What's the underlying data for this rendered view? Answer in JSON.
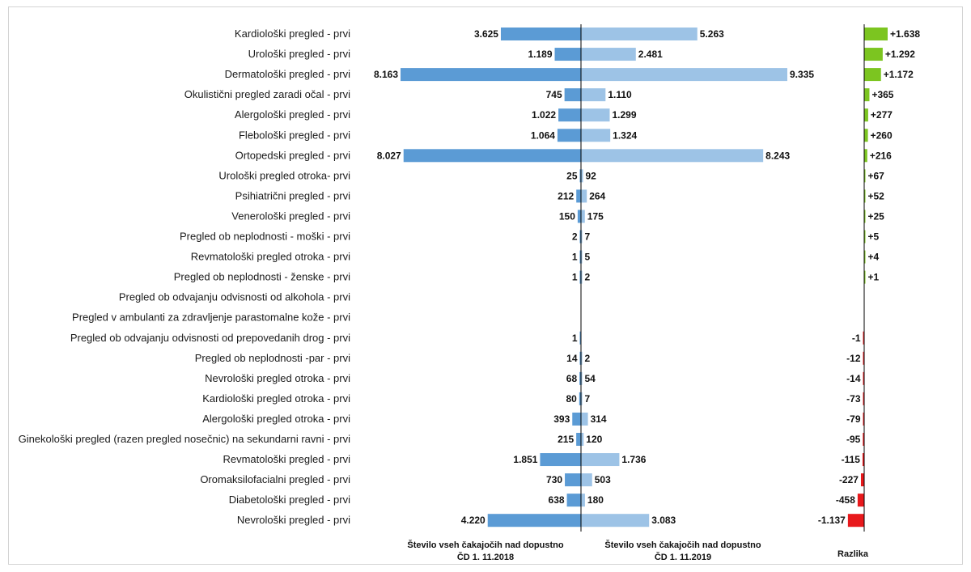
{
  "chart_data": {
    "type": "bar",
    "categories": [
      "Kardiološki pregled - prvi",
      "Urološki pregled - prvi",
      "Dermatološki pregled - prvi",
      "Okulistični pregled zaradi očal - prvi",
      "Alergološki pregled - prvi",
      "Flebološki pregled - prvi",
      "Ortopedski pregled - prvi",
      "Urološki pregled otroka- prvi",
      "Psihiatrični pregled - prvi",
      "Venerološki pregled - prvi",
      "Pregled ob neplodnosti - moški - prvi",
      "Revmatološki pregled otroka - prvi",
      "Pregled ob neplodnosti - ženske - prvi",
      "Pregled ob odvajanju odvisnosti od alkohola - prvi",
      "Pregled v ambulanti za zdravljenje parastomalne kože - prvi",
      "Pregled ob odvajanju odvisnosti od prepovedanih drog - prvi",
      "Pregled ob neplodnosti -par - prvi",
      "Nevrološki pregled otroka - prvi",
      "Kardiološki pregled otroka - prvi",
      "Alergološki pregled otroka - prvi",
      "Ginekološki pregled (razen pregled nosečnic) na sekundarni ravni - prvi",
      "Revmatološki pregled - prvi",
      "Oromaksilofacialni pregled - prvi",
      "Diabetološki pregled - prvi",
      "Nevrološki pregled - prvi"
    ],
    "series": [
      {
        "name": "Število vseh čakajočih nad dopustno ČD 1. 11.2018",
        "values": [
          3625,
          1189,
          8163,
          745,
          1022,
          1064,
          8027,
          25,
          212,
          150,
          2,
          1,
          1,
          null,
          null,
          1,
          14,
          68,
          80,
          393,
          215,
          1851,
          730,
          638,
          4220
        ],
        "labels": [
          "3.625",
          "1.189",
          "8.163",
          "745",
          "1.022",
          "1.064",
          "8.027",
          "25",
          "212",
          "150",
          "2",
          "1",
          "1",
          "",
          "",
          "1",
          "14",
          "68",
          "80",
          "393",
          "215",
          "1.851",
          "730",
          "638",
          "4.220"
        ],
        "color": "#5b9bd5"
      },
      {
        "name": "Število vseh čakajočih nad dopustno ČD 1. 11.2019",
        "values": [
          5263,
          2481,
          9335,
          1110,
          1299,
          1324,
          8243,
          92,
          264,
          175,
          7,
          5,
          2,
          null,
          null,
          null,
          2,
          54,
          7,
          314,
          120,
          1736,
          503,
          180,
          3083
        ],
        "labels": [
          "5.263",
          "2.481",
          "9.335",
          "1.110",
          "1.299",
          "1.324",
          "8.243",
          "92",
          "264",
          "175",
          "7",
          "5",
          "2",
          "",
          "",
          "",
          "2",
          "54",
          "7",
          "314",
          "120",
          "1.736",
          "503",
          "180",
          "3.083"
        ],
        "color": "#9dc3e6"
      },
      {
        "name": "Razlika",
        "values": [
          1638,
          1292,
          1172,
          365,
          277,
          260,
          216,
          67,
          52,
          25,
          5,
          4,
          1,
          null,
          null,
          -1,
          -12,
          -14,
          -73,
          -79,
          -95,
          -115,
          -227,
          -458,
          -1137
        ],
        "labels": [
          "+1.638",
          "+1.292",
          "+1.172",
          "+365",
          "+277",
          "+260",
          "+216",
          "+67",
          "+52",
          "+25",
          "+5",
          "+4",
          "+1",
          "",
          "",
          "-1",
          "-12",
          "-14",
          "-73",
          "-79",
          "-95",
          "-115",
          "-227",
          "-458",
          "-1.137"
        ],
        "positive_color": "#7cc520",
        "negative_color": "#e8191c"
      }
    ],
    "footer_labels": {
      "left_line1": "Število vseh čakajočih nad dopustno",
      "left_line2": "ČD 1. 11.2018",
      "right_line1": "Število vseh čakajočih nad dopustno",
      "right_line2": "ČD 1. 11.2019",
      "diff": "Razlika"
    }
  }
}
